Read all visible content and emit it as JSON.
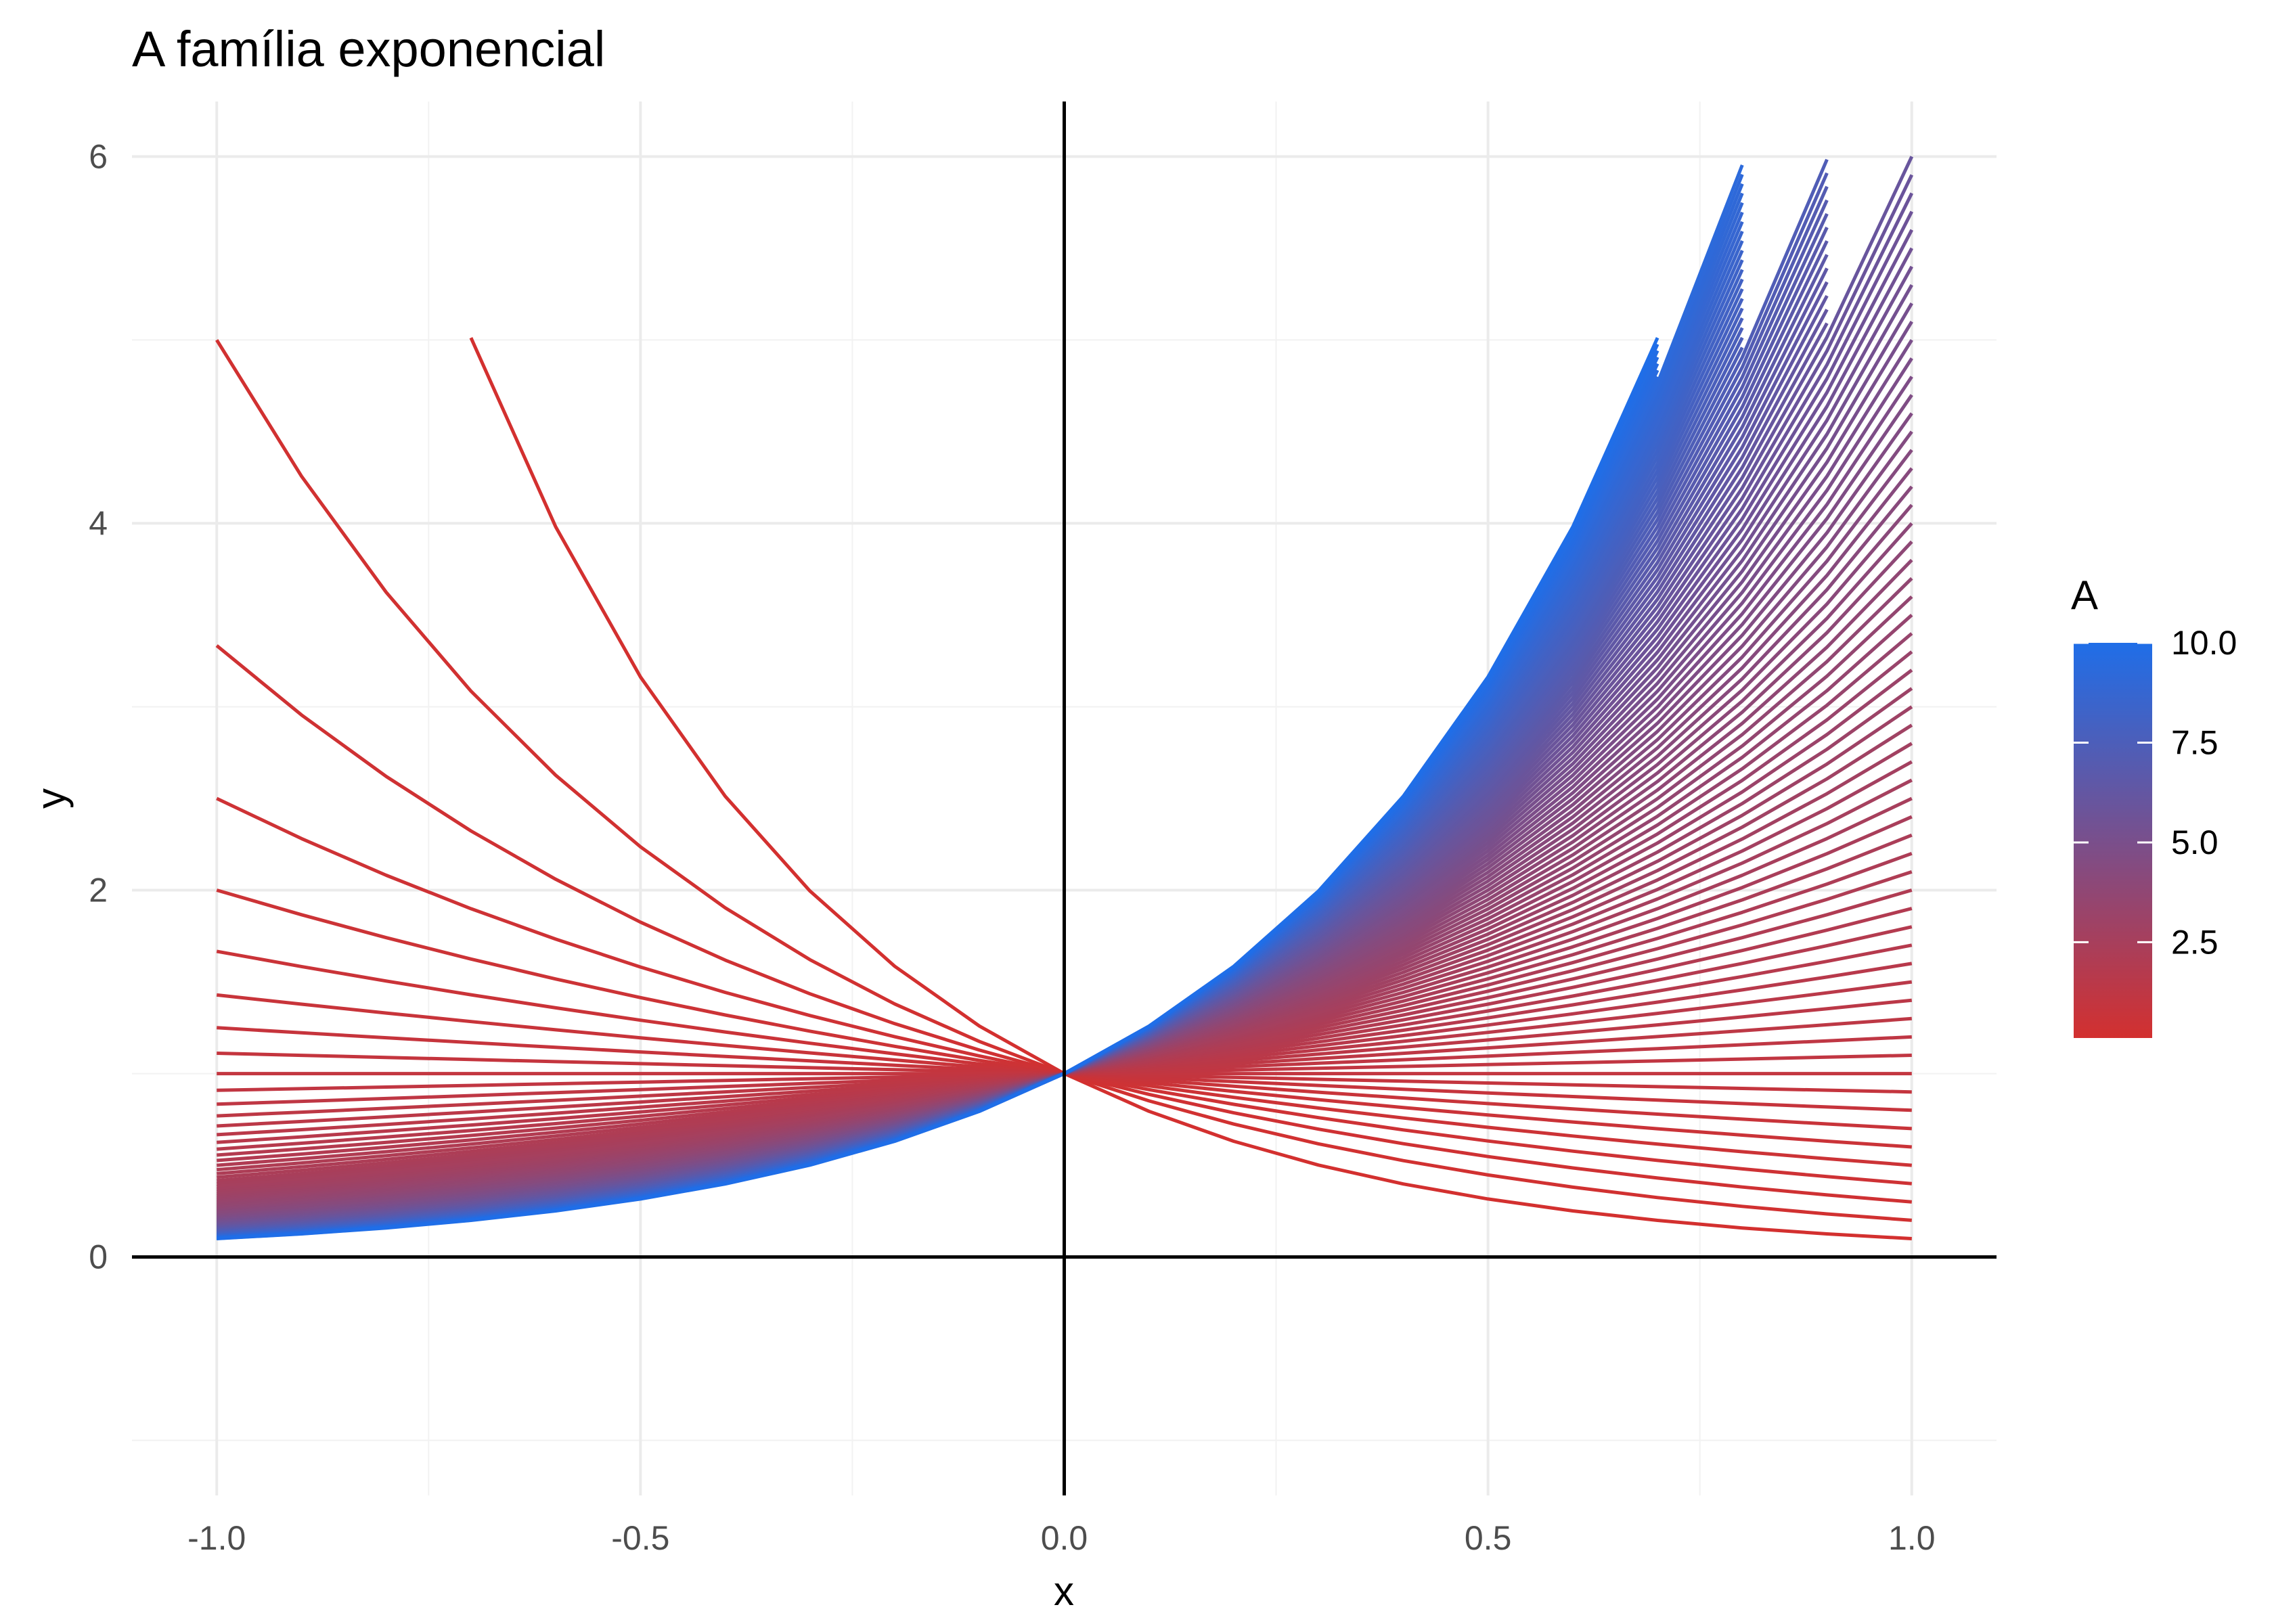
{
  "chart_data": {
    "type": "line",
    "title": "A família exponencial",
    "xlabel": "x",
    "ylabel": "y",
    "xlim": [
      -1.1,
      1.1
    ],
    "ylim": [
      -1.3,
      6.3
    ],
    "x_ticks": [
      "-1.0",
      "-0.5",
      "0.0",
      "0.5",
      "1.0"
    ],
    "x_tick_values": [
      -1,
      -0.5,
      0,
      0.5,
      1
    ],
    "y_ticks": [
      "0",
      "2",
      "4",
      "6"
    ],
    "y_tick_values": [
      0,
      2,
      4,
      6
    ],
    "x": [
      -1,
      -0.9,
      -0.8,
      -0.7,
      -0.6,
      -0.5,
      -0.4,
      -0.3,
      -0.2,
      -0.1,
      0,
      0.1,
      0.2,
      0.3,
      0.4,
      0.5,
      0.6,
      0.7,
      0.8,
      0.9,
      1
    ],
    "function": "y = A^x, values above 6 not drawn",
    "A_min": 0.1,
    "A_max": 10.0,
    "A_step": 0.1,
    "y_cap": 6,
    "reference_lines": {
      "x": 0,
      "y": 0
    },
    "grid": true,
    "legend": {
      "title": "A",
      "type": "colorbar",
      "position": "right",
      "ticks": [
        "2.5",
        "5.0",
        "7.5",
        "10.0"
      ],
      "tick_values": [
        2.5,
        5.0,
        7.5,
        10.0
      ],
      "color_low": "#d3302f",
      "color_high": "#1f6ee8"
    }
  }
}
